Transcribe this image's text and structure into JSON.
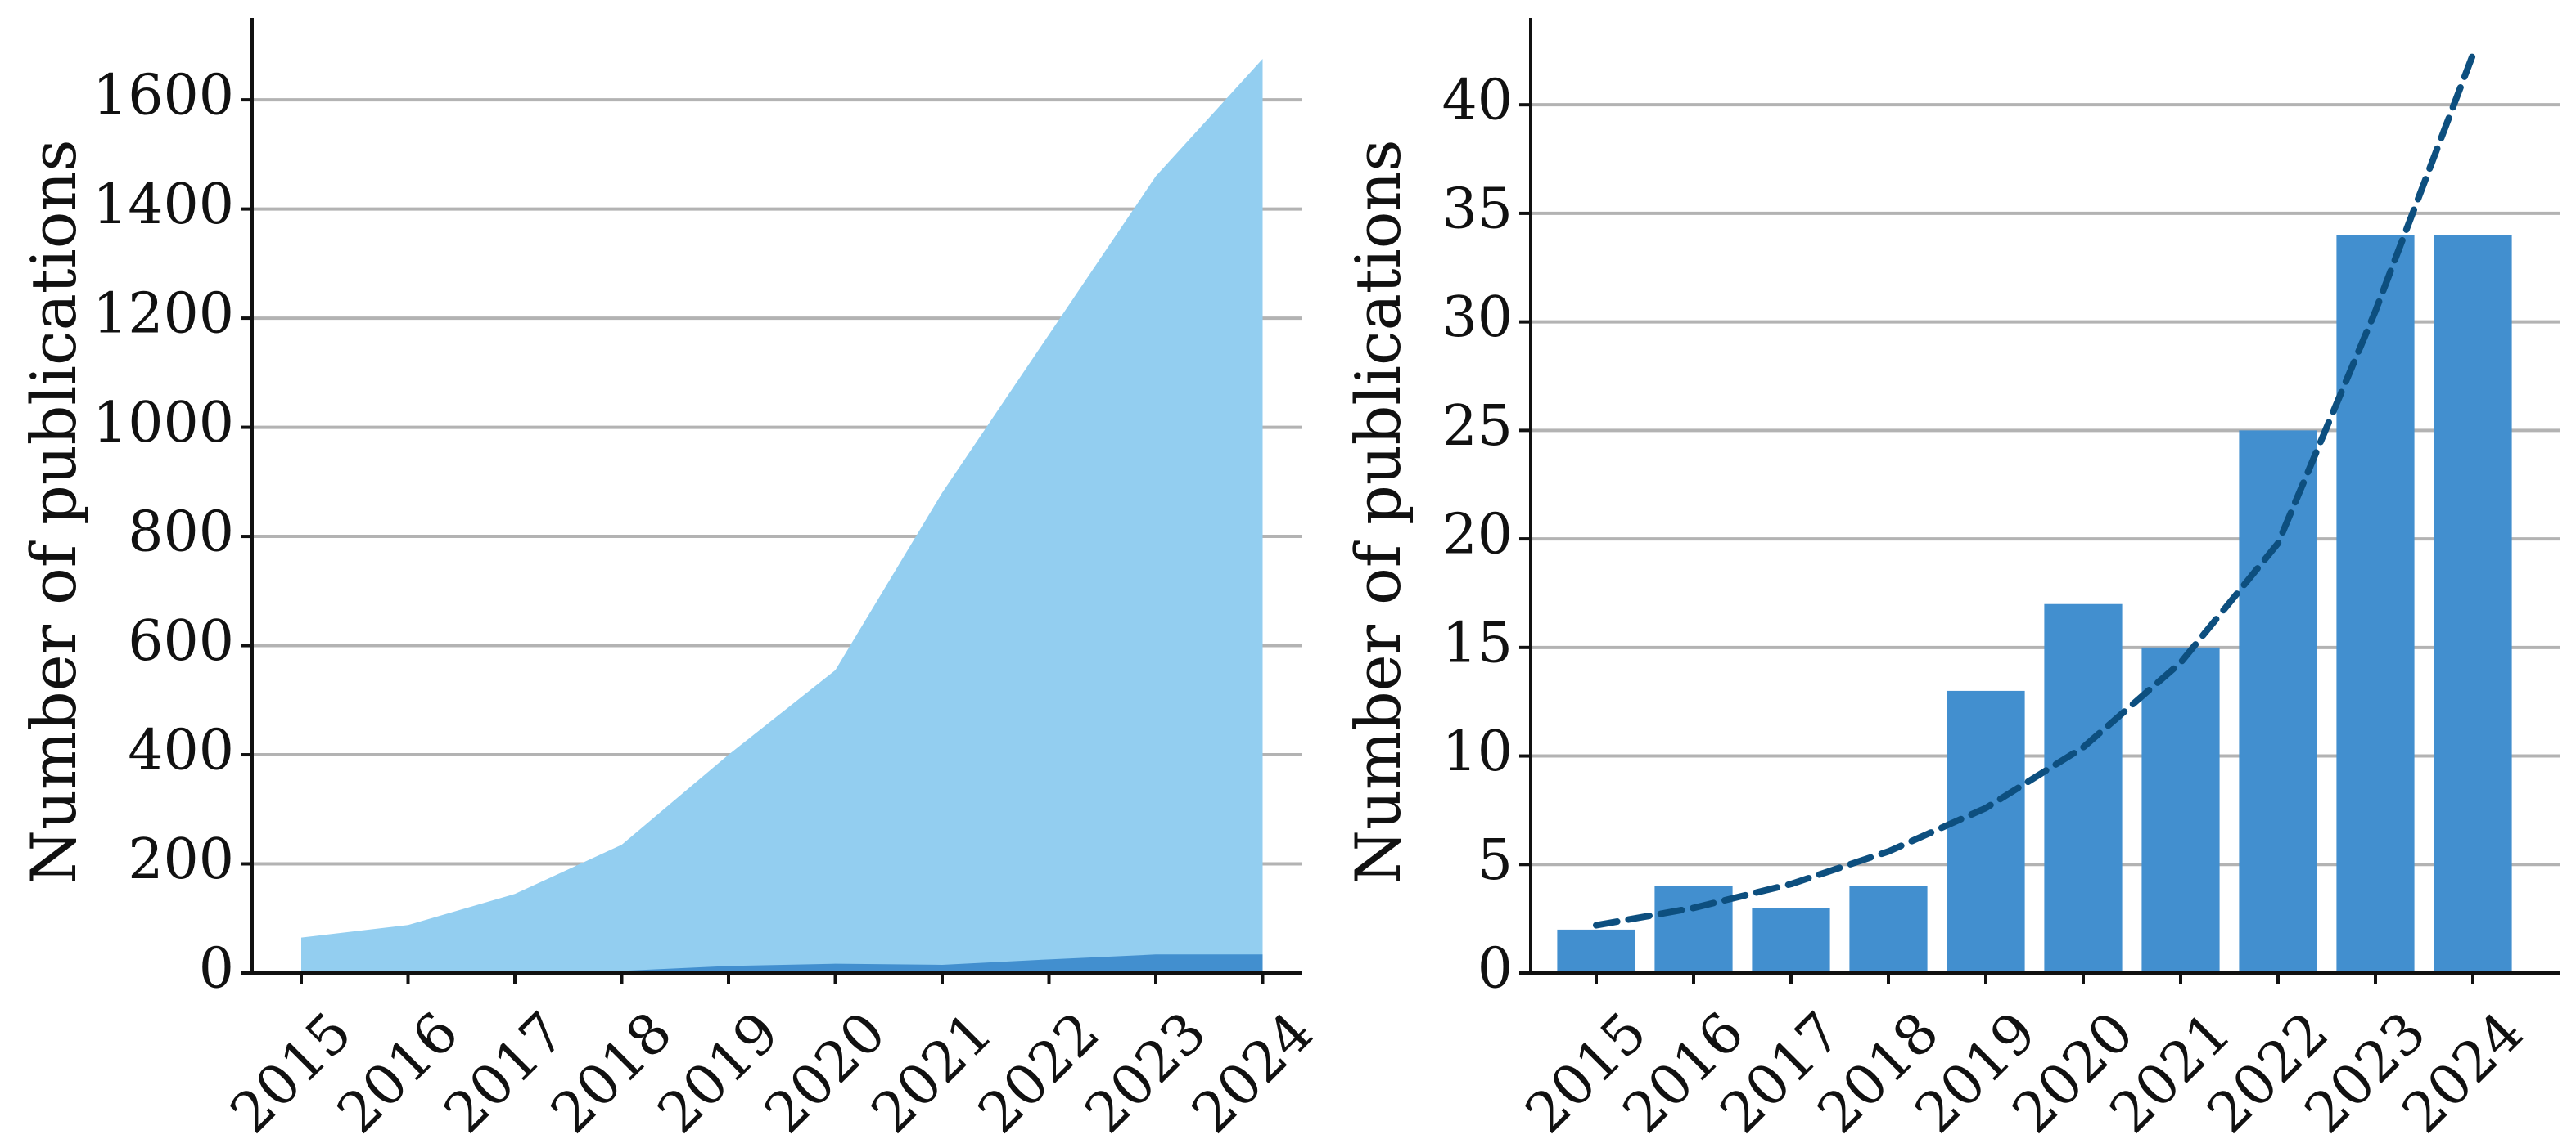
{
  "chart_data": [
    {
      "type": "area",
      "categories": [
        "2015",
        "2016",
        "2017",
        "2018",
        "2019",
        "2020",
        "2021",
        "2022",
        "2023",
        "2024"
      ],
      "series": [
        {
          "values": [
            65,
            88,
            145,
            235,
            400,
            555,
            880,
            1170,
            1460,
            1675
          ],
          "color": "#93cef0"
        },
        {
          "values": [
            2,
            4,
            3,
            4,
            13,
            17,
            15,
            25,
            34,
            34
          ],
          "color": "#428fcf"
        }
      ],
      "xlabel": "",
      "ylabel": "Number of publications",
      "ylim": [
        0,
        1750
      ],
      "yticks": [
        0,
        200,
        400,
        600,
        800,
        1000,
        1200,
        1400,
        1600
      ],
      "grid": "horizontal"
    },
    {
      "type": "bar",
      "categories": [
        "2015",
        "2016",
        "2017",
        "2018",
        "2019",
        "2020",
        "2021",
        "2022",
        "2023",
        "2024"
      ],
      "values": [
        2,
        4,
        3,
        4,
        13,
        17,
        15,
        25,
        34,
        34
      ],
      "bar_color": "#428fcf",
      "trend": {
        "style": "dashed",
        "color": "#0d4f7f",
        "x": [
          2015,
          2016,
          2017,
          2018,
          2019,
          2020,
          2021,
          2022,
          2023,
          2024
        ],
        "y": [
          2.2,
          3.0,
          4.1,
          5.6,
          7.6,
          10.4,
          14.3,
          19.8,
          30.5,
          42.3
        ]
      },
      "xlabel": "",
      "ylabel": "Number of publications",
      "ylim": [
        0,
        44
      ],
      "yticks": [
        0,
        5,
        10,
        15,
        20,
        25,
        30,
        35,
        40
      ],
      "grid": "horizontal"
    }
  ]
}
